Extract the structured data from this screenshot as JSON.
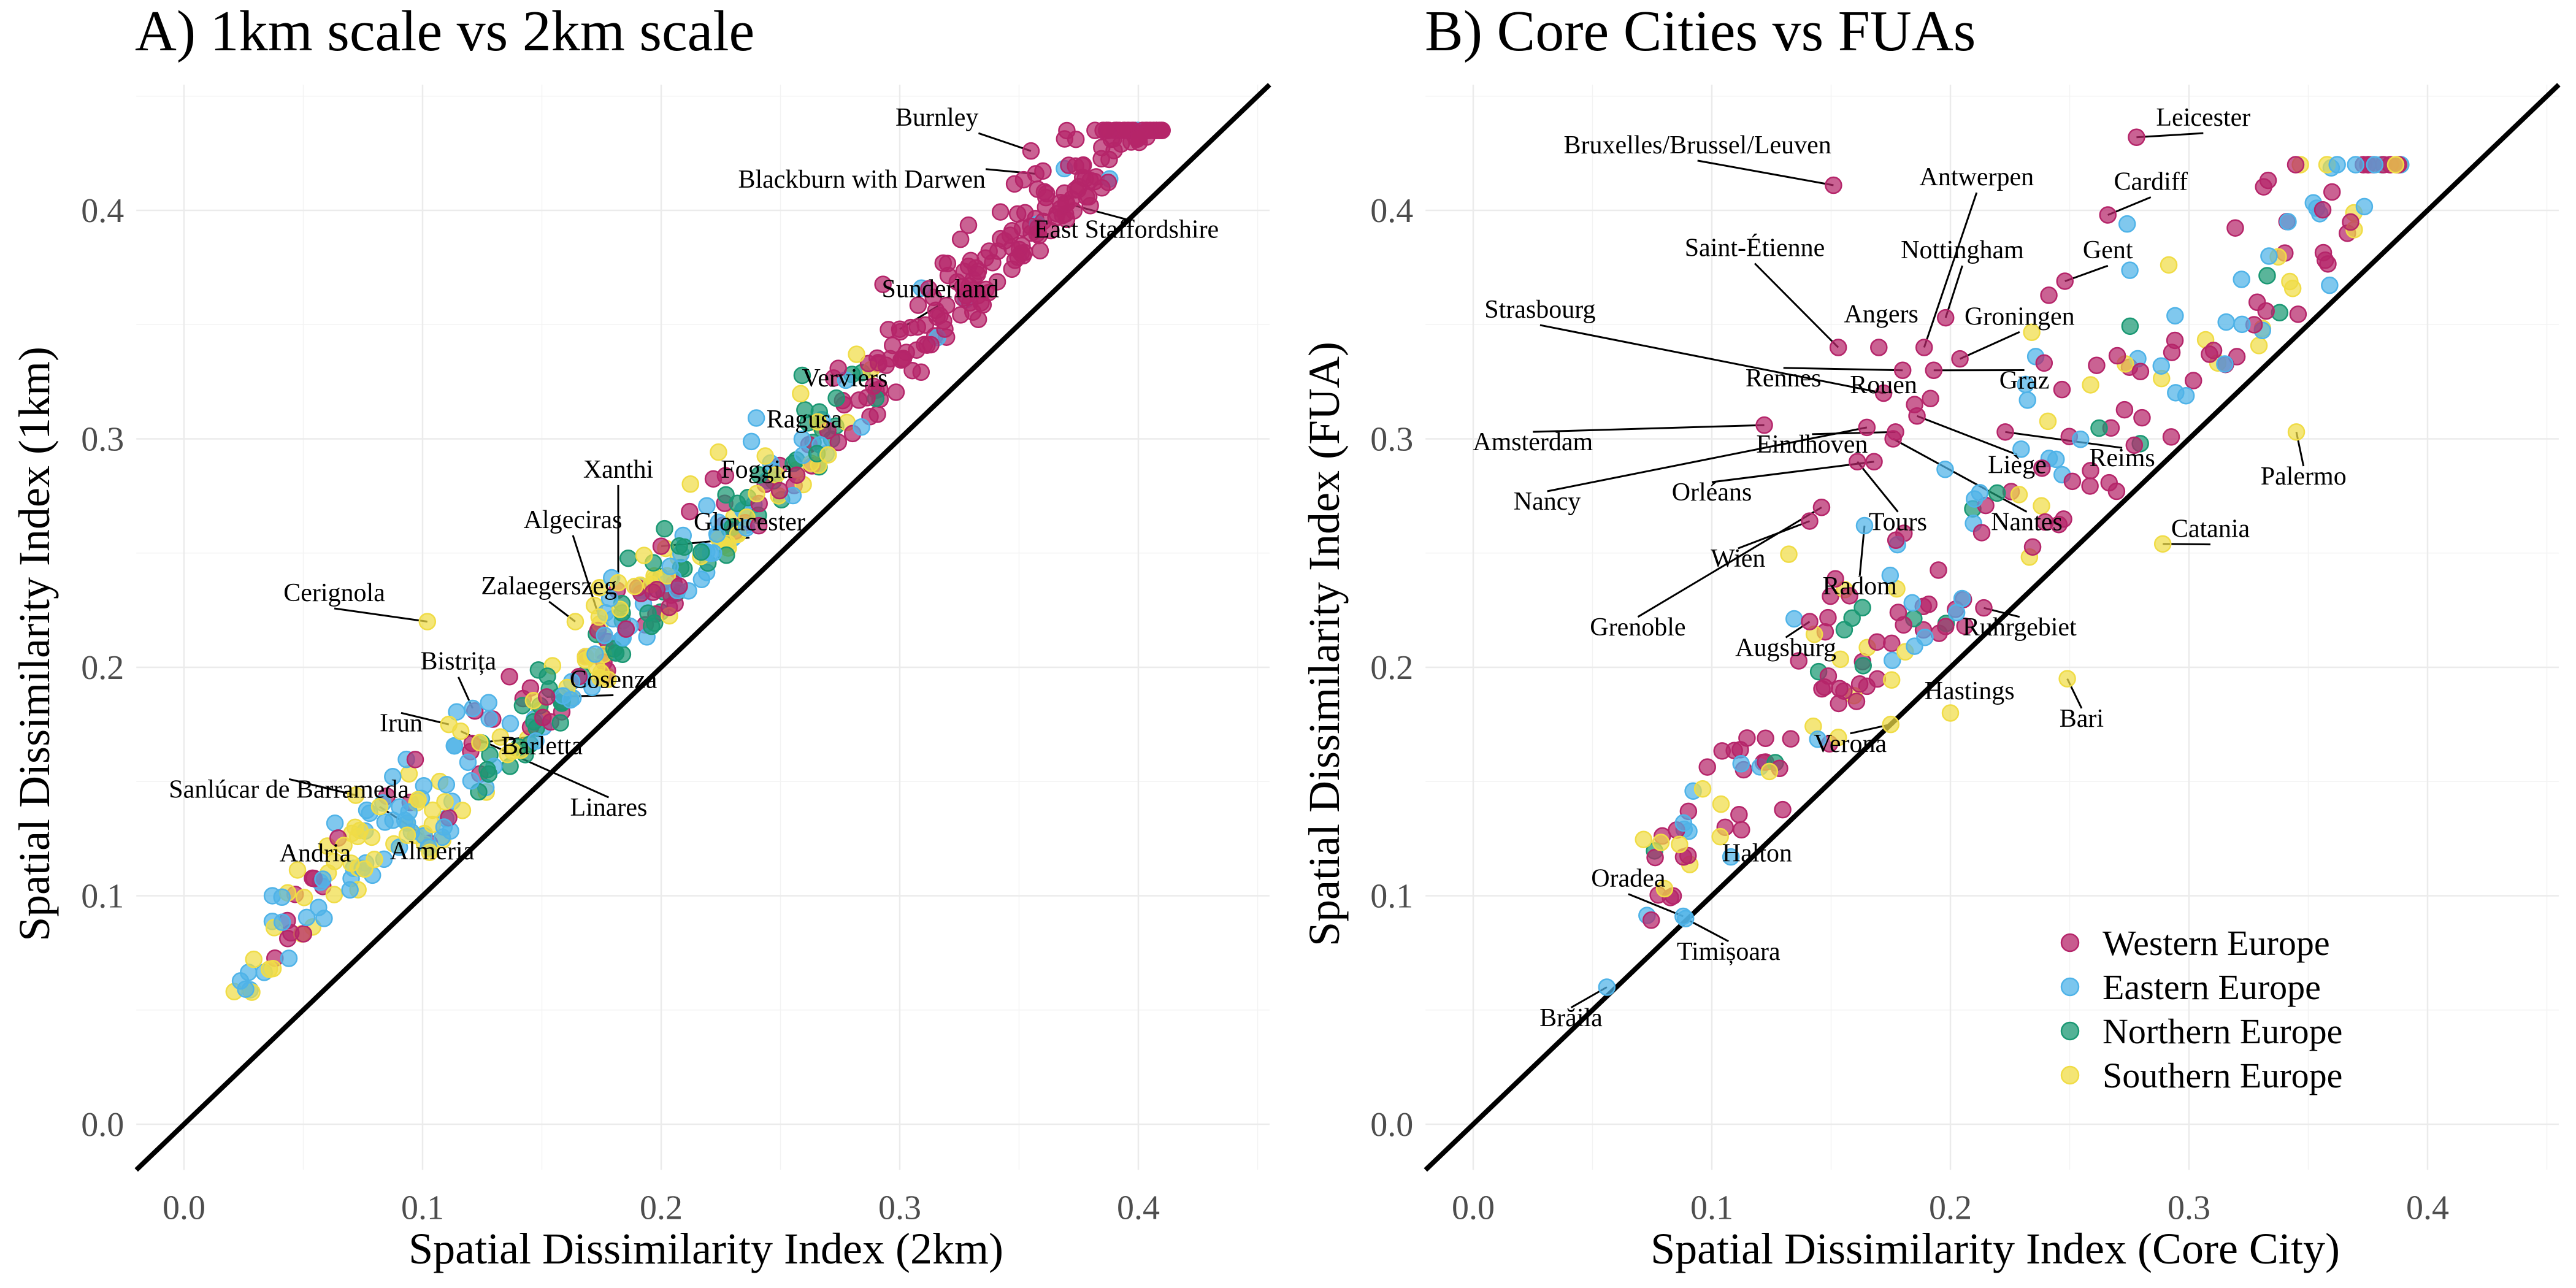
{
  "legend": {
    "title": "",
    "entries": [
      {
        "key": "W",
        "name": "Western Europe",
        "color": "#b5256a"
      },
      {
        "key": "E",
        "name": "Eastern Europe",
        "color": "#4fb3e8"
      },
      {
        "key": "N",
        "name": "Northern Europe",
        "color": "#1a9873"
      },
      {
        "key": "S",
        "name": "Southern Europe",
        "color": "#f0dc46"
      }
    ]
  },
  "chart_data": [
    {
      "type": "scatter",
      "title": "A) 1km scale vs 2km scale",
      "xlabel": "Spatial Dissimilarity Index (2km)",
      "ylabel": "Spatial Dissimilarity Index (1km)",
      "xlim": [
        -0.02,
        0.455
      ],
      "ylim": [
        -0.02,
        0.455
      ],
      "xticks": [
        "0.0",
        "0.1",
        "0.2",
        "0.3",
        "0.4"
      ],
      "yticks": [
        "0.0",
        "0.1",
        "0.2",
        "0.3",
        "0.4"
      ],
      "reference_line": "y = x",
      "labeled_points": [
        {
          "name": "Burnley",
          "x": 0.355,
          "y": 0.426,
          "g": "W",
          "tx": 0.333,
          "ty": 0.437,
          "ta": "end"
        },
        {
          "name": "Blackburn with Darwen",
          "x": 0.357,
          "y": 0.416,
          "g": "W",
          "tx": 0.336,
          "ty": 0.41,
          "ta": "end"
        },
        {
          "name": "East Staffordshire",
          "x": 0.37,
          "y": 0.403,
          "g": "W",
          "tx": 0.395,
          "ty": 0.388,
          "ta": "middle"
        },
        {
          "name": "Sunderland",
          "x": 0.3,
          "y": 0.348,
          "g": "W",
          "tx": 0.317,
          "ty": 0.362,
          "ta": "middle"
        },
        {
          "name": "Verviers",
          "x": 0.289,
          "y": 0.323,
          "g": "W",
          "tx": 0.277,
          "ty": 0.323,
          "ta": "middle"
        },
        {
          "name": "Ragusa",
          "x": 0.27,
          "y": 0.293,
          "g": "S",
          "tx": 0.26,
          "ty": 0.305,
          "ta": "middle"
        },
        {
          "name": "Xanthi",
          "x": 0.182,
          "y": 0.237,
          "g": "S",
          "tx": 0.182,
          "ty": 0.283,
          "ta": "middle"
        },
        {
          "name": "Foggia",
          "x": 0.24,
          "y": 0.276,
          "g": "S",
          "tx": 0.24,
          "ty": 0.283,
          "ta": "middle"
        },
        {
          "name": "Algeciras",
          "x": 0.174,
          "y": 0.222,
          "g": "S",
          "tx": 0.163,
          "ty": 0.261,
          "ta": "middle"
        },
        {
          "name": "Gloucester",
          "x": 0.2,
          "y": 0.253,
          "g": "W",
          "tx": 0.237,
          "ty": 0.26,
          "ta": "middle"
        },
        {
          "name": "Cerignola",
          "x": 0.102,
          "y": 0.22,
          "g": "S",
          "tx": 0.063,
          "ty": 0.229,
          "ta": "middle"
        },
        {
          "name": "Zalaegerszeg",
          "x": 0.164,
          "y": 0.22,
          "g": "S",
          "tx": 0.153,
          "ty": 0.232,
          "ta": "middle"
        },
        {
          "name": "Bistrița",
          "x": 0.121,
          "y": 0.182,
          "g": "E",
          "tx": 0.115,
          "ty": 0.199,
          "ta": "middle"
        },
        {
          "name": "Cosenza",
          "x": 0.152,
          "y": 0.187,
          "g": "W",
          "tx": 0.18,
          "ty": 0.191,
          "ta": "middle"
        },
        {
          "name": "Irun",
          "x": 0.111,
          "y": 0.175,
          "g": "S",
          "tx": 0.091,
          "ty": 0.172,
          "ta": "middle"
        },
        {
          "name": "Barletta",
          "x": 0.124,
          "y": 0.167,
          "g": "S",
          "tx": 0.15,
          "ty": 0.162,
          "ta": "middle"
        },
        {
          "name": "Linares",
          "x": 0.116,
          "y": 0.172,
          "g": "S",
          "tx": 0.178,
          "ty": 0.135,
          "ta": "middle"
        },
        {
          "name": "Sanlúcar de Barrameda",
          "x": 0.072,
          "y": 0.144,
          "g": "S",
          "tx": 0.044,
          "ty": 0.143,
          "ta": "middle"
        },
        {
          "name": "Andria",
          "x": 0.067,
          "y": 0.122,
          "g": "S",
          "tx": 0.055,
          "ty": 0.115,
          "ta": "middle"
        },
        {
          "name": "Almeria",
          "x": 0.082,
          "y": 0.139,
          "g": "S",
          "tx": 0.104,
          "ty": 0.116,
          "ta": "middle"
        }
      ]
    },
    {
      "type": "scatter",
      "title": "B) Core Cities vs FUAs",
      "xlabel": "Spatial Dissimilarity Index (Core City)",
      "ylabel": "Spatial Dissimilarity Index (FUA)",
      "xlim": [
        -0.02,
        0.455
      ],
      "ylim": [
        -0.02,
        0.455
      ],
      "xticks": [
        "0.0",
        "0.1",
        "0.2",
        "0.3",
        "0.4"
      ],
      "yticks": [
        "0.0",
        "0.1",
        "0.2",
        "0.3",
        "0.4"
      ],
      "reference_line": "y = x",
      "labeled_points": [
        {
          "name": "Leicester",
          "x": 0.278,
          "y": 0.432,
          "g": "W",
          "tx": 0.306,
          "ty": 0.437,
          "ta": "middle"
        },
        {
          "name": "Bruxelles/Brussel/Leuven",
          "x": 0.151,
          "y": 0.411,
          "g": "W",
          "tx": 0.094,
          "ty": 0.425,
          "ta": "middle"
        },
        {
          "name": "Cardiff",
          "x": 0.266,
          "y": 0.398,
          "g": "W",
          "tx": 0.284,
          "ty": 0.409,
          "ta": "middle"
        },
        {
          "name": "Antwerpen",
          "x": 0.189,
          "y": 0.34,
          "g": "W",
          "tx": 0.211,
          "ty": 0.411,
          "ta": "middle"
        },
        {
          "name": "Saint-Étienne",
          "x": 0.153,
          "y": 0.34,
          "g": "W",
          "tx": 0.118,
          "ty": 0.38,
          "ta": "middle"
        },
        {
          "name": "Nottingham",
          "x": 0.198,
          "y": 0.353,
          "g": "W",
          "tx": 0.205,
          "ty": 0.379,
          "ta": "middle"
        },
        {
          "name": "Gent",
          "x": 0.248,
          "y": 0.369,
          "g": "W",
          "tx": 0.266,
          "ty": 0.379,
          "ta": "middle"
        },
        {
          "name": "Strasbourg",
          "x": 0.172,
          "y": 0.32,
          "g": "W",
          "tx": 0.028,
          "ty": 0.353,
          "ta": "middle"
        },
        {
          "name": "Angers",
          "x": 0.17,
          "y": 0.34,
          "g": "W",
          "tx": 0.171,
          "ty": 0.351,
          "ta": "middle"
        },
        {
          "name": "Groningen",
          "x": 0.204,
          "y": 0.335,
          "g": "W",
          "tx": 0.229,
          "ty": 0.35,
          "ta": "middle"
        },
        {
          "name": "Rennes",
          "x": 0.18,
          "y": 0.33,
          "g": "W",
          "tx": 0.13,
          "ty": 0.323,
          "ta": "middle"
        },
        {
          "name": "Graz",
          "x": 0.193,
          "y": 0.33,
          "g": "W",
          "tx": 0.231,
          "ty": 0.322,
          "ta": "middle"
        },
        {
          "name": "Rouen",
          "x": 0.185,
          "y": 0.315,
          "g": "W",
          "tx": 0.172,
          "ty": 0.32,
          "ta": "middle"
        },
        {
          "name": "Amsterdam",
          "x": 0.122,
          "y": 0.306,
          "g": "W",
          "tx": 0.025,
          "ty": 0.295,
          "ta": "middle"
        },
        {
          "name": "Eindhoven",
          "x": 0.177,
          "y": 0.303,
          "g": "W",
          "tx": 0.142,
          "ty": 0.294,
          "ta": "middle"
        },
        {
          "name": "Reims",
          "x": 0.223,
          "y": 0.303,
          "g": "W",
          "tx": 0.272,
          "ty": 0.288,
          "ta": "middle"
        },
        {
          "name": "Liège",
          "x": 0.186,
          "y": 0.31,
          "g": "W",
          "tx": 0.228,
          "ty": 0.285,
          "ta": "middle"
        },
        {
          "name": "Palermo",
          "x": 0.345,
          "y": 0.303,
          "g": "S",
          "tx": 0.348,
          "ty": 0.28,
          "ta": "middle"
        },
        {
          "name": "Nancy",
          "x": 0.165,
          "y": 0.305,
          "g": "W",
          "tx": 0.031,
          "ty": 0.269,
          "ta": "middle"
        },
        {
          "name": "Orléans",
          "x": 0.168,
          "y": 0.29,
          "g": "W",
          "tx": 0.1,
          "ty": 0.273,
          "ta": "middle"
        },
        {
          "name": "Nantes",
          "x": 0.176,
          "y": 0.3,
          "g": "W",
          "tx": 0.232,
          "ty": 0.26,
          "ta": "middle"
        },
        {
          "name": "Tours",
          "x": 0.161,
          "y": 0.29,
          "g": "W",
          "tx": 0.178,
          "ty": 0.26,
          "ta": "middle"
        },
        {
          "name": "Catania",
          "x": 0.289,
          "y": 0.254,
          "g": "S",
          "tx": 0.309,
          "ty": 0.257,
          "ta": "middle"
        },
        {
          "name": "Wien",
          "x": 0.141,
          "y": 0.264,
          "g": "W",
          "tx": 0.111,
          "ty": 0.244,
          "ta": "middle"
        },
        {
          "name": "Radom",
          "x": 0.164,
          "y": 0.262,
          "g": "E",
          "tx": 0.162,
          "ty": 0.232,
          "ta": "middle"
        },
        {
          "name": "Grenoble",
          "x": 0.146,
          "y": 0.27,
          "g": "W",
          "tx": 0.069,
          "ty": 0.214,
          "ta": "middle"
        },
        {
          "name": "Ruhrgebiet",
          "x": 0.214,
          "y": 0.226,
          "g": "W",
          "tx": 0.229,
          "ty": 0.214,
          "ta": "middle"
        },
        {
          "name": "Augsburg",
          "x": 0.141,
          "y": 0.22,
          "g": "W",
          "tx": 0.131,
          "ty": 0.205,
          "ta": "middle"
        },
        {
          "name": "Hastings",
          "x": 0.2,
          "y": 0.18,
          "g": "S",
          "tx": 0.208,
          "ty": 0.186,
          "ta": "middle"
        },
        {
          "name": "Bari",
          "x": 0.249,
          "y": 0.195,
          "g": "S",
          "tx": 0.255,
          "ty": 0.174,
          "ta": "middle"
        },
        {
          "name": "Verona",
          "x": 0.175,
          "y": 0.175,
          "g": "S",
          "tx": 0.158,
          "ty": 0.163,
          "ta": "middle"
        },
        {
          "name": "Halton",
          "x": 0.108,
          "y": 0.117,
          "g": "E",
          "tx": 0.119,
          "ty": 0.115,
          "ta": "middle"
        },
        {
          "name": "Oradea",
          "x": 0.088,
          "y": 0.091,
          "g": "E",
          "tx": 0.065,
          "ty": 0.104,
          "ta": "middle"
        },
        {
          "name": "Timișoara",
          "x": 0.089,
          "y": 0.09,
          "g": "E",
          "tx": 0.107,
          "ty": 0.072,
          "ta": "middle"
        },
        {
          "name": "Brăila",
          "x": 0.056,
          "y": 0.06,
          "g": "E",
          "tx": 0.041,
          "ty": 0.043,
          "ta": "middle"
        }
      ]
    }
  ]
}
